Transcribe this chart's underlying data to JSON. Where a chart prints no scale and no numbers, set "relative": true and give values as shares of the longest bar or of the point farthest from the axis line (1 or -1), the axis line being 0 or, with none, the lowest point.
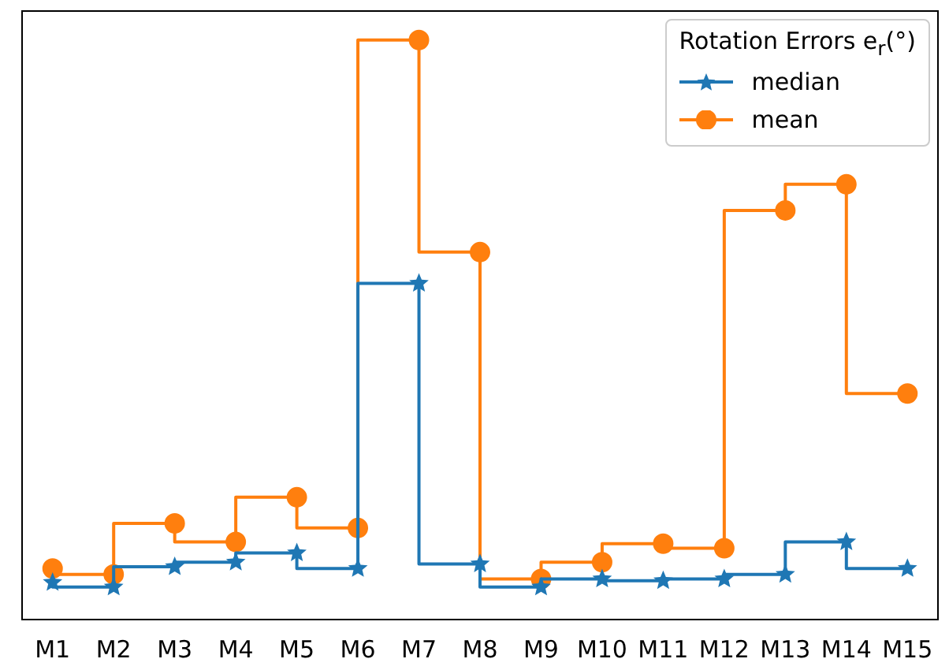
{
  "chart_data": {
    "type": "step",
    "relative": true,
    "legend_title": "Rotation Errors e$_{r}$(°)",
    "legend": "top right",
    "categories": [
      "M1",
      "M2",
      "M3",
      "M4",
      "M5",
      "M6",
      "M7",
      "M8",
      "M9",
      "M10",
      "M11",
      "M12",
      "M13",
      "M14",
      "M15"
    ],
    "series": [
      {
        "name": "median",
        "color": "#1f77b4",
        "marker": "star",
        "values": [
          0.064,
          0.056,
          0.091,
          0.099,
          0.115,
          0.088,
          0.58,
          0.096,
          0.056,
          0.07,
          0.067,
          0.07,
          0.078,
          0.134,
          0.088
        ]
      },
      {
        "name": "mean",
        "color": "#ff7f0e",
        "marker": "circle",
        "values": [
          0.088,
          0.078,
          0.166,
          0.134,
          0.211,
          0.158,
          1,
          0.634,
          0.07,
          0.099,
          0.131,
          0.123,
          0.706,
          0.751,
          0.39
        ]
      }
    ]
  }
}
